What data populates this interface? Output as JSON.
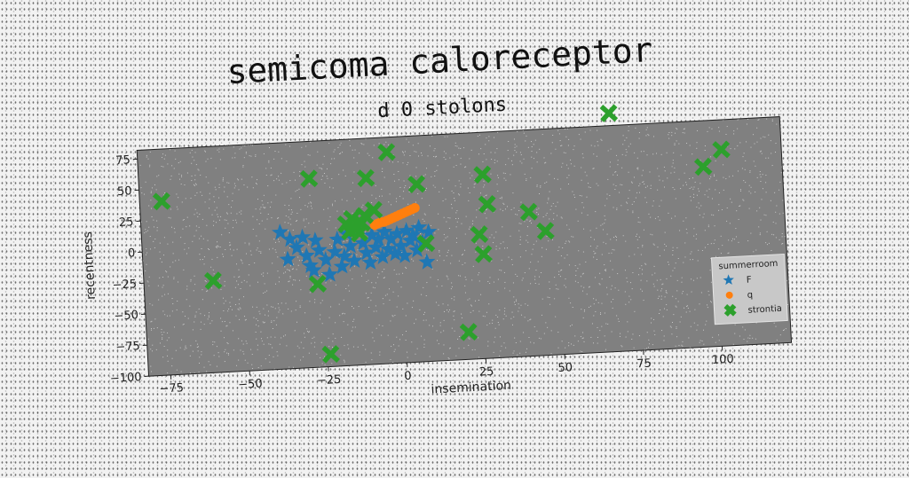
{
  "chart_data": {
    "type": "scatter",
    "title": "semicoma caloreceptor",
    "subtitle": "d 0 stolons",
    "xlabel": "insemination",
    "ylabel": "recentness",
    "xlim": [
      -82,
      122
    ],
    "ylim": [
      -100,
      82
    ],
    "xticks": [
      -75,
      -50,
      -25,
      0,
      25,
      50,
      75,
      100
    ],
    "yticks": [
      75,
      50,
      25,
      0,
      -25,
      -50,
      -75,
      -100
    ],
    "grid": false,
    "legend": {
      "title": "summerroom",
      "position": "bottom-right"
    },
    "series": [
      {
        "name": "F",
        "marker": "star",
        "color": "#1f77b4",
        "points": [
          [
            -38,
            10
          ],
          [
            -35,
            4
          ],
          [
            -33,
            -3
          ],
          [
            -31,
            5
          ],
          [
            -30,
            -10
          ],
          [
            -29,
            -18
          ],
          [
            -27,
            2
          ],
          [
            -26,
            -6
          ],
          [
            -24,
            -14
          ],
          [
            -23,
            -26
          ],
          [
            -21,
            -8
          ],
          [
            -20,
            2
          ],
          [
            -19,
            -20
          ],
          [
            -18,
            -12
          ],
          [
            -17,
            6
          ],
          [
            -16,
            -4
          ],
          [
            -15,
            -16
          ],
          [
            -13,
            8
          ],
          [
            -12,
            -2
          ],
          [
            -11,
            -10
          ],
          [
            -10,
            -18
          ],
          [
            -9,
            4
          ],
          [
            -8,
            -6
          ],
          [
            -7,
            0
          ],
          [
            -6,
            -14
          ],
          [
            -5,
            6
          ],
          [
            -4,
            -8
          ],
          [
            -3,
            0
          ],
          [
            -2,
            -12
          ],
          [
            -1,
            4
          ],
          [
            0,
            -6
          ],
          [
            1,
            -14
          ],
          [
            2,
            6
          ],
          [
            3,
            -2
          ],
          [
            4,
            2
          ],
          [
            5,
            -10
          ],
          [
            6,
            8
          ],
          [
            7,
            -4
          ],
          [
            8,
            -20
          ],
          [
            9,
            4
          ],
          [
            -36,
            -12
          ],
          [
            -28,
            -22
          ]
        ]
      },
      {
        "name": "q",
        "marker": "circle",
        "color": "#ff7f0e",
        "points": [
          [
            -8,
            12
          ],
          [
            -7,
            13
          ],
          [
            -6,
            14
          ],
          [
            -5,
            14
          ],
          [
            -4,
            15
          ],
          [
            -3,
            16
          ],
          [
            -2,
            17
          ],
          [
            -1,
            18
          ],
          [
            0,
            19
          ],
          [
            1,
            20
          ],
          [
            2,
            21
          ],
          [
            3,
            22
          ],
          [
            4,
            23
          ],
          [
            5,
            24
          ]
        ]
      },
      {
        "name": "strontia",
        "marker": "x",
        "color": "#2ca02c",
        "points": [
          [
            -75,
            40
          ],
          [
            -60,
            -26
          ],
          [
            -28,
            52
          ],
          [
            -27,
            -33
          ],
          [
            -24,
            -90
          ],
          [
            -17,
            14
          ],
          [
            -16,
            8
          ],
          [
            -15,
            18
          ],
          [
            -14,
            10
          ],
          [
            -13,
            6
          ],
          [
            -12,
            14
          ],
          [
            -11,
            20
          ],
          [
            -10,
            50
          ],
          [
            -8,
            24
          ],
          [
            -3,
            70
          ],
          [
            6,
            43
          ],
          [
            8,
            -5
          ],
          [
            20,
            -78
          ],
          [
            25,
            0
          ],
          [
            26,
            -16
          ],
          [
            27,
            48
          ],
          [
            28,
            24
          ],
          [
            41,
            16
          ],
          [
            46,
            0
          ],
          [
            68,
            92
          ],
          [
            97,
            45
          ],
          [
            103,
            58
          ]
        ]
      }
    ]
  }
}
